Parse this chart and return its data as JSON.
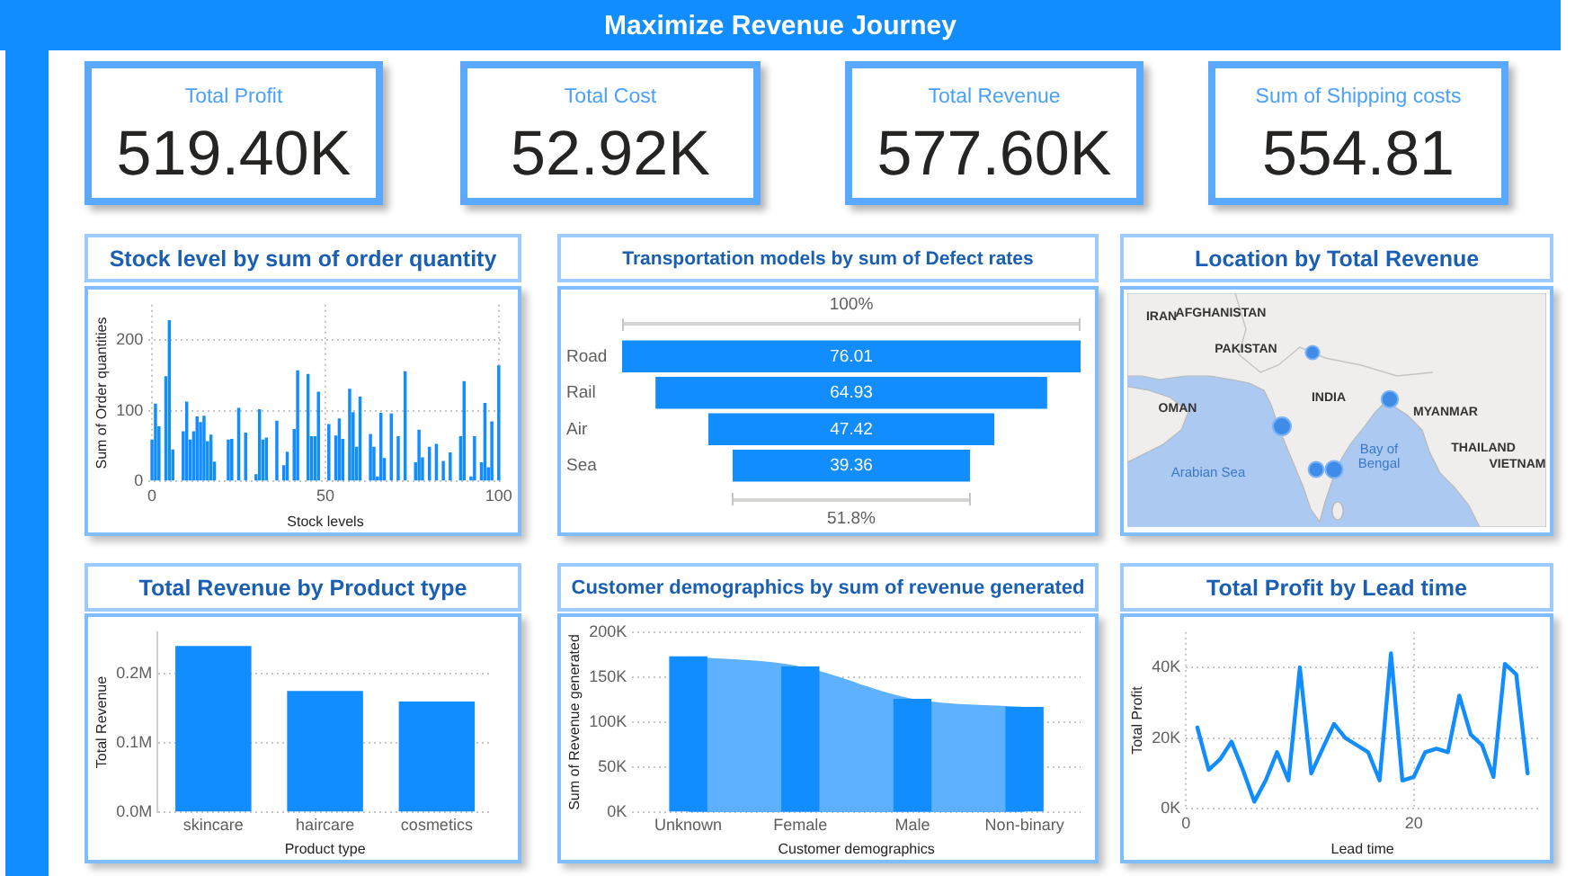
{
  "chart_data": [
    {
      "type": "other",
      "title": "Maximize Revenue Journey"
    },
    {
      "type": "other",
      "title": "Total Profit",
      "annotations": [
        "519.40K"
      ]
    },
    {
      "type": "other",
      "title": "Total Cost",
      "annotations": [
        "52.92K"
      ]
    },
    {
      "type": "other",
      "title": "Total Revenue",
      "annotations": [
        "577.60K"
      ]
    },
    {
      "type": "other",
      "title": "Sum of Shipping costs",
      "annotations": [
        "554.81"
      ]
    },
    {
      "type": "bar",
      "title": "Stock level by sum of order quantity",
      "xlabel": "Stock levels",
      "ylabel": "Sum of Order quantities",
      "x": [
        0,
        1,
        2,
        4,
        5,
        6,
        9,
        10,
        11,
        12,
        13,
        14,
        15,
        16,
        17,
        18,
        22,
        23,
        25,
        27,
        30,
        31,
        32,
        33,
        36,
        38,
        39,
        41,
        42,
        45,
        46,
        47,
        48,
        51,
        53,
        54,
        55,
        57,
        58,
        59,
        60,
        63,
        64,
        65,
        66,
        67,
        69,
        71,
        73,
        76,
        77,
        78,
        80,
        82,
        84,
        86,
        89,
        90,
        92,
        93,
        95,
        96,
        97,
        98,
        100
      ],
      "values": [
        59,
        110,
        78,
        149,
        228,
        45,
        71,
        113,
        59,
        71,
        92,
        84,
        93,
        57,
        66,
        28,
        59,
        60,
        104,
        69,
        10,
        102,
        59,
        62,
        86,
        23,
        42,
        74,
        157,
        152,
        64,
        64,
        127,
        81,
        65,
        89,
        60,
        131,
        98,
        49,
        120,
        67,
        49,
        7,
        97,
        33,
        96,
        64,
        156,
        27,
        73,
        34,
        49,
        53,
        29,
        41,
        64,
        142,
        7,
        64,
        27,
        111,
        20,
        85,
        164
      ],
      "color": "#118dff",
      "xlim": [
        -1,
        101
      ],
      "xticks": [
        0,
        50,
        100
      ],
      "ylim": [
        0,
        250
      ],
      "yticks": [
        0,
        100,
        200
      ],
      "grid": true
    },
    {
      "type": "other",
      "title": "Transportation models by sum of Defect rates",
      "categories": [
        "Road",
        "Rail",
        "Air",
        "Sea"
      ],
      "values": [
        76.01,
        64.93,
        47.42,
        39.36
      ],
      "color": "#118dff",
      "data_labels": true,
      "annotations": [
        "100%",
        "51.8%"
      ]
    },
    {
      "type": "other",
      "title": "Location by Total Revenue",
      "annotations": [
        "IRAN",
        "AFGHANISTAN",
        "PAKISTAN",
        "INDIA",
        "OMAN",
        "MYANMAR",
        "THAILAND",
        "VIETNAM",
        "Arabian Sea",
        "Bay of Bengal"
      ]
    },
    {
      "type": "bar",
      "title": "Total Revenue by Product type",
      "xlabel": "Product type",
      "ylabel": "Total Revenue",
      "categories": [
        "skincare",
        "haircare",
        "cosmetics"
      ],
      "values": [
        0.24,
        0.175,
        0.16
      ],
      "color": "#118dff",
      "ylim": [
        0,
        0.26
      ],
      "yticks": [
        {
          "value": 0,
          "label": "0.0M"
        },
        {
          "value": 0.1,
          "label": "0.1M"
        },
        {
          "value": 0.2,
          "label": "0.2M"
        }
      ],
      "grid": "y"
    },
    {
      "type": "bar",
      "title": "Customer demographics by sum of revenue generated",
      "xlabel": "Customer demographics",
      "ylabel": "Sum of Revenue generated",
      "categories": [
        "Unknown",
        "Female",
        "Male",
        "Non-binary"
      ],
      "series": [
        {
          "type": "bar",
          "color": "#118dff",
          "values": [
            173,
            162,
            126,
            117
          ]
        },
        {
          "type": "area",
          "color": "#5db1ff",
          "values": [
            173,
            162,
            126,
            117
          ]
        }
      ],
      "ylim": [
        0,
        200
      ],
      "yticks": [
        {
          "value": 0,
          "label": "0K"
        },
        {
          "value": 50,
          "label": "50K"
        },
        {
          "value": 100,
          "label": "100K"
        },
        {
          "value": 150,
          "label": "150K"
        },
        {
          "value": 200,
          "label": "200K"
        }
      ],
      "grid": "y"
    },
    {
      "type": "line",
      "title": "Total Profit by Lead time",
      "xlabel": "Lead time",
      "ylabel": "Total Profit",
      "x": [
        1,
        2,
        3,
        4,
        5,
        6,
        7,
        8,
        9,
        10,
        11,
        12,
        13,
        14,
        15,
        16,
        17,
        18,
        19,
        20,
        21,
        22,
        23,
        24,
        25,
        26,
        27,
        28,
        29,
        30
      ],
      "values": [
        23,
        11,
        14,
        19,
        11,
        2,
        8,
        16,
        8,
        40,
        10,
        17,
        24,
        20,
        18,
        16,
        8,
        44,
        8,
        9,
        16,
        17,
        16,
        32,
        21,
        18,
        9,
        41,
        38,
        10
      ],
      "color": "#118dff",
      "xlim": [
        0,
        31
      ],
      "xticks": [
        0,
        20
      ],
      "ylim": [
        0,
        50
      ],
      "yticks": [
        {
          "value": 0,
          "label": "0K"
        },
        {
          "value": 20,
          "label": "20K"
        },
        {
          "value": 40,
          "label": "40K"
        }
      ],
      "grid": true
    }
  ]
}
